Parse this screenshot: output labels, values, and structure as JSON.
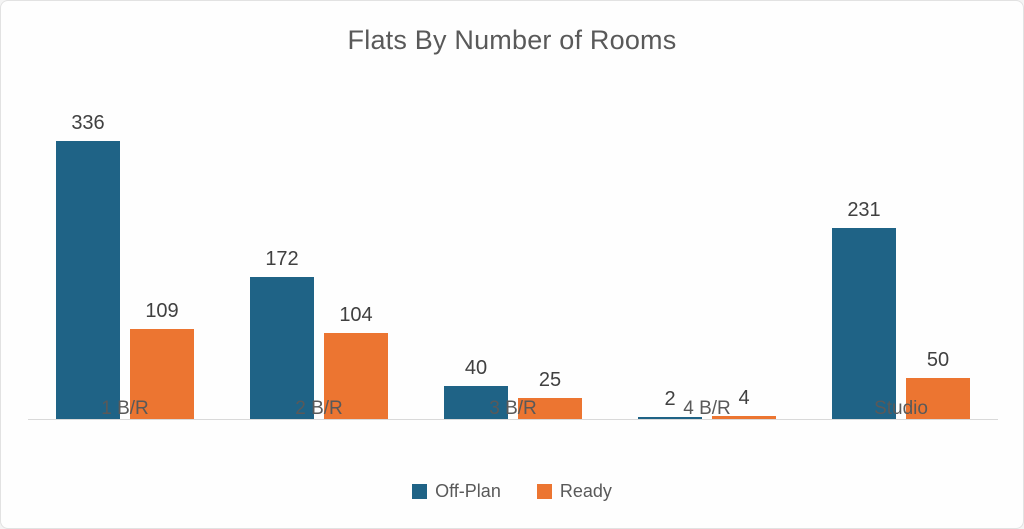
{
  "card": {
    "background": "#FEFEFE",
    "border_color": "#E2E2E2"
  },
  "chart_data": {
    "type": "bar",
    "title": "Flats By Number of Rooms",
    "categories": [
      "1 B/R",
      "2 B/R",
      "3 B/R",
      "4 B/R",
      "Studio"
    ],
    "series": [
      {
        "name": "Off-Plan",
        "color": "#1F6386",
        "values": [
          336,
          172,
          40,
          2,
          231
        ]
      },
      {
        "name": "Ready",
        "color": "#EC7531",
        "values": [
          109,
          104,
          25,
          4,
          50
        ]
      }
    ],
    "ylim": [
      0,
      400
    ],
    "grid": false,
    "legend_position": "bottom",
    "data_labels": true,
    "axis_line_color": "#D9D9D9",
    "title_color": "#595959",
    "data_label_color": "#404040",
    "category_label_color": "#595959"
  }
}
